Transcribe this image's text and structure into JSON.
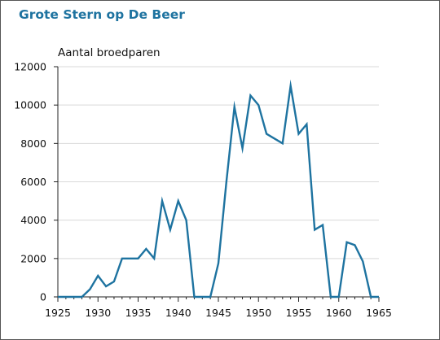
{
  "chart_data": {
    "type": "line",
    "title": "Grote Stern op De Beer",
    "ylabel": "Aantal broedparen",
    "xlabel": "",
    "xlim": [
      1925,
      1965
    ],
    "ylim": [
      0,
      12000
    ],
    "x_ticks": [
      1925,
      1930,
      1935,
      1940,
      1945,
      1950,
      1955,
      1960,
      1965
    ],
    "y_ticks": [
      0,
      2000,
      4000,
      6000,
      8000,
      10000,
      12000
    ],
    "grid": "horizontal",
    "legend": "none",
    "line_color": "#1e73a0",
    "title_color": "#1e73a0",
    "series": [
      {
        "x": [
          1925,
          1926,
          1927,
          1928,
          1929,
          1930,
          1931,
          1932,
          1933,
          1934,
          1935,
          1936,
          1937,
          1938,
          1939,
          1940,
          1941,
          1942,
          1943,
          1944,
          1945,
          1946,
          1947,
          1948,
          1949,
          1950,
          1951,
          1952,
          1953,
          1954,
          1955,
          1956,
          1957,
          1958,
          1959,
          1960,
          1961,
          1962,
          1963,
          1964,
          1965
        ],
        "values": [
          0,
          0,
          0,
          0,
          400,
          1100,
          550,
          800,
          2000,
          2000,
          2000,
          2500,
          2000,
          5000,
          3500,
          5000,
          4000,
          0,
          0,
          0,
          1750,
          6000,
          9900,
          7750,
          10500,
          10000,
          8500,
          8250,
          8000,
          11000,
          8500,
          9000,
          3500,
          3750,
          0,
          0,
          2850,
          2700,
          1850,
          0,
          0
        ]
      }
    ]
  }
}
